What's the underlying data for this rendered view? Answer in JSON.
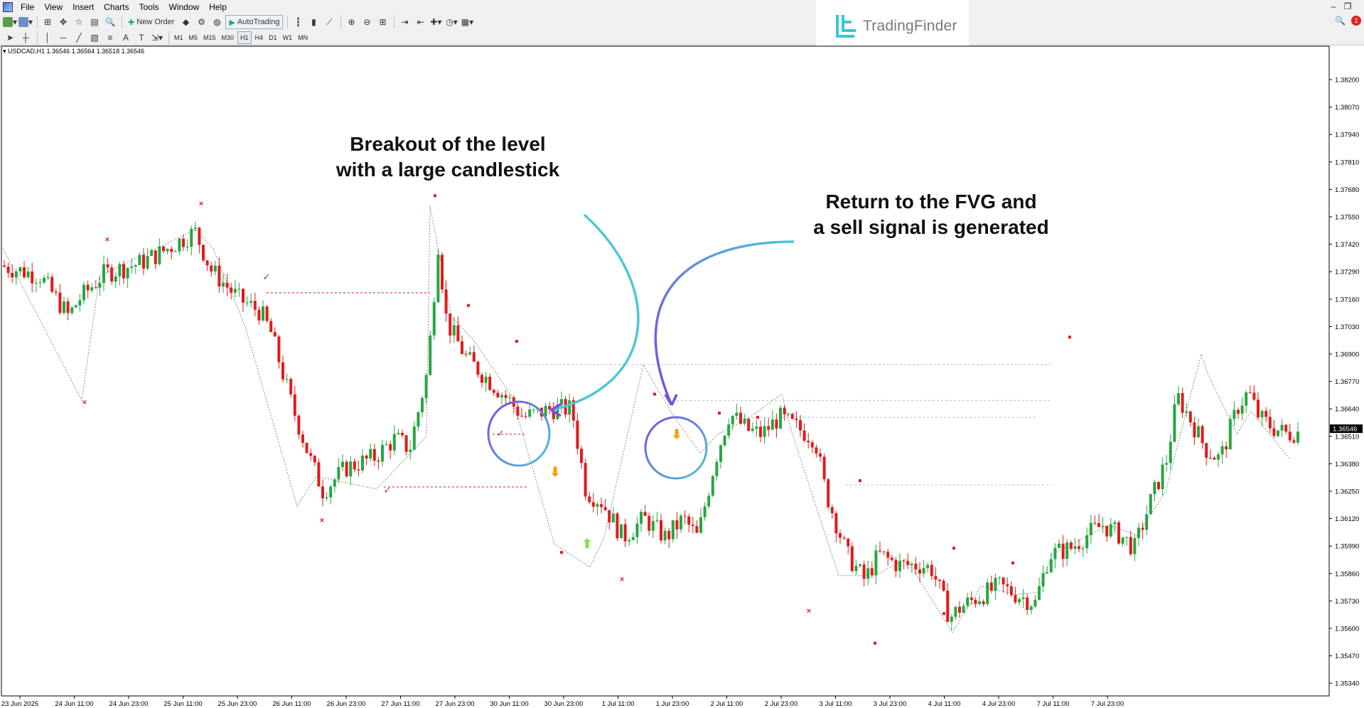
{
  "menu": [
    "File",
    "View",
    "Insert",
    "Charts",
    "Tools",
    "Window",
    "Help"
  ],
  "toolbar": {
    "new_order": "New Order",
    "auto_trading": "AutoTrading"
  },
  "timeframes": [
    "M1",
    "M5",
    "M15",
    "M30",
    "H1",
    "H4",
    "D1",
    "W1",
    "MN"
  ],
  "active_timeframe": "H1",
  "brand": {
    "logo_text": "TradingFinder",
    "notification_count": "1"
  },
  "chart": {
    "header": "USDCAD,H1  1.36546 1.36564 1.36518 1.36546",
    "current_price": "1.36546",
    "price_ticks": [
      "1.38200",
      "1.38070",
      "1.37940",
      "1.37810",
      "1.37680",
      "1.37550",
      "1.37420",
      "1.37290",
      "1.37160",
      "1.37030",
      "1.36900",
      "1.36770",
      "1.36640",
      "1.36510",
      "1.36380",
      "1.36250",
      "1.36120",
      "1.35990",
      "1.35860",
      "1.35730",
      "1.35600",
      "1.35470",
      "1.35340"
    ],
    "time_ticks": [
      "23 Jun 2025",
      "24 Jun 11:00",
      "24 Jun 23:00",
      "25 Jun 11:00",
      "25 Jun 23:00",
      "26 Jun 11:00",
      "26 Jun 23:00",
      "27 Jun 11:00",
      "27 Jun 23:00",
      "30 Jun 11:00",
      "30 Jun 23:00",
      "1 Jul 11:00",
      "1 Jul 23:00",
      "2 Jul 11:00",
      "2 Jul 23:00",
      "3 Jul 11:00",
      "3 Jul 23:00",
      "4 Jul 11:00",
      "4 Jul 23:00",
      "7 Jul 11:00",
      "7 Jul 23:00"
    ],
    "colors": {
      "bull": "#26a641",
      "bear": "#e11b1b",
      "annotation_arrow": "#4dc7d8",
      "annotation_arrow_violet": "#7b4be0"
    }
  },
  "annotations": {
    "breakout_line1": "Breakout of the level",
    "breakout_line2": "with a large candlestick",
    "fvg_line1": "Return to the FVG and",
    "fvg_line2": "a sell signal is generated"
  }
}
